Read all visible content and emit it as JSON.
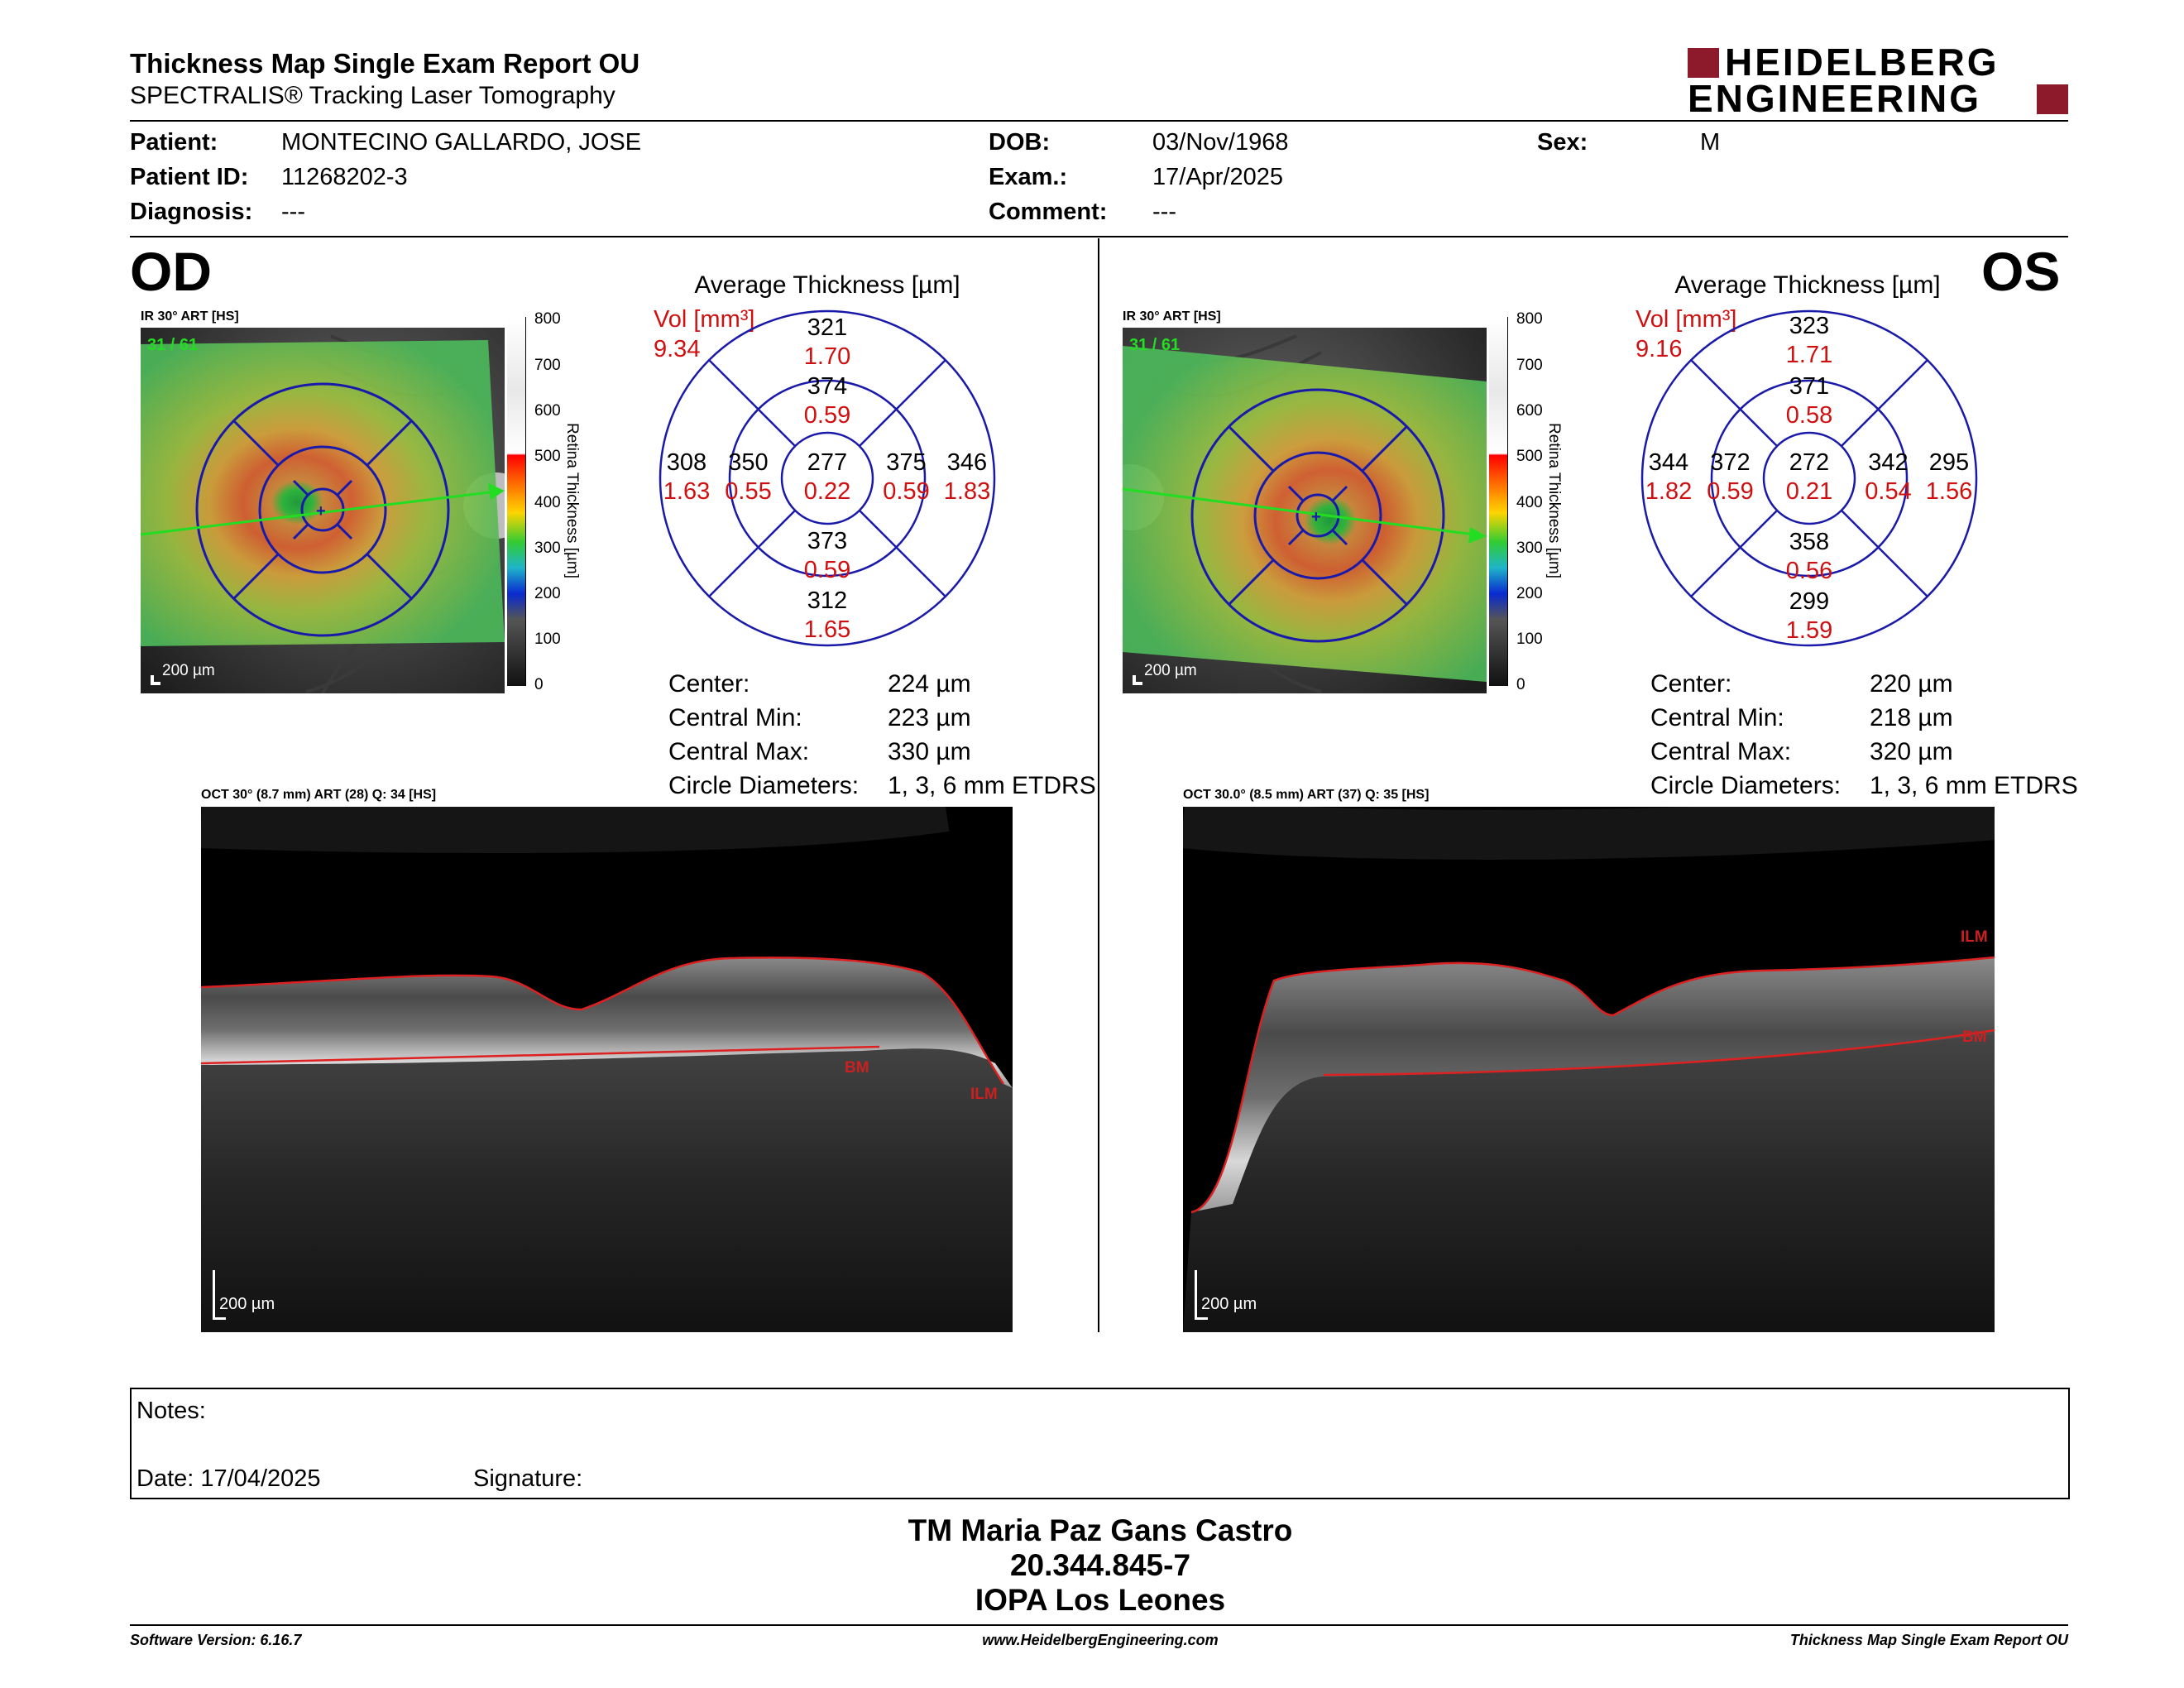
{
  "header": {
    "title": "Thickness Map Single Exam Report OU",
    "subtitle": "SPECTRALIS® Tracking Laser Tomography",
    "logo_line1": "HEIDELBERG",
    "logo_line2": "ENGINEERING"
  },
  "patient": {
    "patient_label": "Patient:",
    "patient_value": "MONTECINO GALLARDO, JOSE",
    "id_label": "Patient ID:",
    "id_value": "11268202-3",
    "diagnosis_label": "Diagnosis:",
    "diagnosis_value": "---",
    "dob_label": "DOB:",
    "dob_value": "03/Nov/1968",
    "exam_label": "Exam.:",
    "exam_value": "17/Apr/2025",
    "comment_label": "Comment:",
    "comment_value": "---",
    "sex_label": "Sex:",
    "sex_value": "M"
  },
  "colorbar": {
    "ticks": [
      "800",
      "700",
      "600",
      "500",
      "400",
      "300",
      "200",
      "100",
      "0"
    ],
    "label": "Retina Thickness [µm]"
  },
  "od": {
    "eye": "OD",
    "ir_caption": "IR 30° ART [HS]",
    "ir_count": "31 / 61",
    "scale": "200 µm",
    "grid_title": "Average Thickness [µm]",
    "vol_label": "Vol [mm³]",
    "vol_value": "9.34",
    "sectors": {
      "outer_sup": "321",
      "outer_sup_vol": "1.70",
      "inner_sup": "374",
      "inner_sup_vol": "0.59",
      "outer_left": "308",
      "outer_left_vol": "1.63",
      "inner_left": "350",
      "inner_left_vol": "0.55",
      "center": "277",
      "center_vol": "0.22",
      "inner_right": "375",
      "inner_right_vol": "0.59",
      "outer_right": "346",
      "outer_right_vol": "1.83",
      "inner_inf": "373",
      "inner_inf_vol": "0.59",
      "outer_inf": "312",
      "outer_inf_vol": "1.65"
    },
    "stats": {
      "center_label": "Center:",
      "center_value": "224 µm",
      "min_label": "Central Min:",
      "min_value": "223 µm",
      "max_label": "Central Max:",
      "max_value": "330 µm",
      "diam_label": "Circle Diameters:",
      "diam_value": "1, 3, 6 mm ETDRS"
    },
    "oct_caption": "OCT 30° (8.7 mm) ART (28) Q: 34 [HS]",
    "oct_scale": "200 µm",
    "ilm": "ILM",
    "bm": "BM"
  },
  "os": {
    "eye": "OS",
    "ir_caption": "IR 30° ART [HS]",
    "ir_count": "31 / 61",
    "scale": "200 µm",
    "grid_title": "Average Thickness [µm]",
    "vol_label": "Vol [mm³]",
    "vol_value": "9.16",
    "sectors": {
      "outer_sup": "323",
      "outer_sup_vol": "1.71",
      "inner_sup": "371",
      "inner_sup_vol": "0.58",
      "outer_left": "344",
      "outer_left_vol": "1.82",
      "inner_left": "372",
      "inner_left_vol": "0.59",
      "center": "272",
      "center_vol": "0.21",
      "inner_right": "342",
      "inner_right_vol": "0.54",
      "outer_right": "295",
      "outer_right_vol": "1.56",
      "inner_inf": "358",
      "inner_inf_vol": "0.56",
      "outer_inf": "299",
      "outer_inf_vol": "1.59"
    },
    "stats": {
      "center_label": "Center:",
      "center_value": "220 µm",
      "min_label": "Central Min:",
      "min_value": "218 µm",
      "max_label": "Central Max:",
      "max_value": "320 µm",
      "diam_label": "Circle Diameters:",
      "diam_value": "1, 3, 6 mm ETDRS"
    },
    "oct_caption": "OCT 30.0° (8.5 mm) ART (37) Q: 35 [HS]",
    "oct_scale": "200 µm",
    "ilm": "ILM",
    "bm": "BM"
  },
  "notes": {
    "notes_label": "Notes:",
    "date_label": "Date: 17/04/2025",
    "signature_label": "Signature:"
  },
  "signature": {
    "name": "TM Maria Paz Gans Castro",
    "rut": "20.344.845-7",
    "org": "IOPA Los Leones"
  },
  "footer": {
    "software": "Software Version: 6.16.7",
    "website": "www.HeidelbergEngineering.com",
    "report": "Thickness Map Single Exam Report OU"
  },
  "colors": {
    "accent_red": "#8c1a2b",
    "grid_blue": "#1a1aaa",
    "vol_red": "#d01010"
  }
}
